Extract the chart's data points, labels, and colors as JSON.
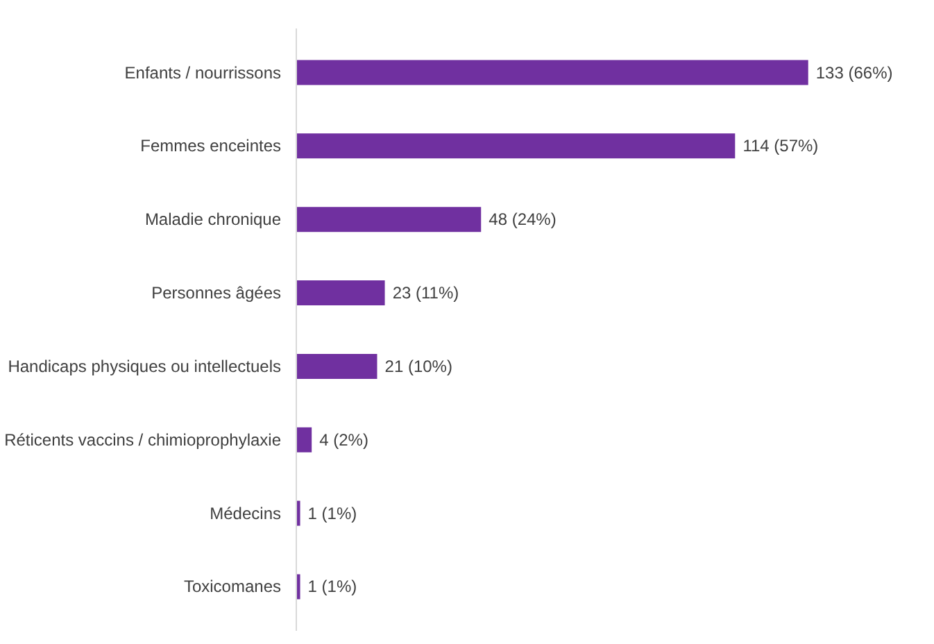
{
  "chart_data": {
    "type": "bar",
    "orientation": "horizontal",
    "categories": [
      "Enfants / nourrissons",
      "Femmes enceintes",
      "Maladie chronique",
      "Personnes âgées",
      "Handicaps physiques ou intellectuels",
      "Réticents vaccins / chimioprophylaxie",
      "Médecins",
      "Toxicomanes"
    ],
    "values": [
      133,
      114,
      48,
      23,
      21,
      4,
      1,
      1
    ],
    "value_labels": [
      "133 (66%)",
      "114 (57%)",
      "48 (24%)",
      "23 (11%)",
      "21 (10%)",
      "4 (2%)",
      "1 (1%)",
      "1 (1%)"
    ],
    "color": "#7030a0",
    "grid": false
  }
}
